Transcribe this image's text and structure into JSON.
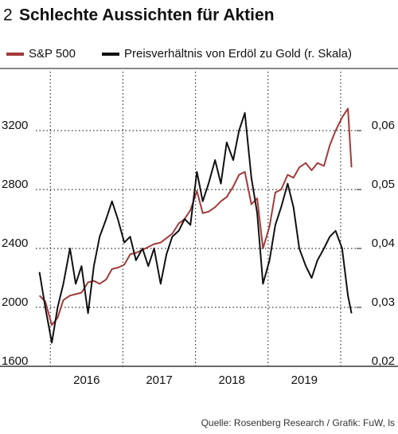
{
  "chart_data": {
    "type": "line",
    "number": "2",
    "title": "Schlechte Aussichten für Aktien",
    "source": "Quelle: Rosenberg Research / Grafik: FuW, ls",
    "x": [
      2015.85,
      2015.93,
      2016.02,
      2016.1,
      2016.18,
      2016.27,
      2016.35,
      2016.43,
      2016.52,
      2016.6,
      2016.68,
      2016.77,
      2016.85,
      2016.93,
      2017.02,
      2017.1,
      2017.18,
      2017.27,
      2017.35,
      2017.43,
      2017.52,
      2017.6,
      2017.68,
      2017.77,
      2017.85,
      2017.93,
      2018.02,
      2018.1,
      2018.18,
      2018.27,
      2018.35,
      2018.43,
      2018.52,
      2018.6,
      2018.68,
      2018.77,
      2018.85,
      2018.93,
      2019.02,
      2019.1,
      2019.18,
      2019.27,
      2019.35,
      2019.43,
      2019.52,
      2019.6,
      2019.68,
      2019.77,
      2019.85,
      2019.93,
      2020.02,
      2020.1,
      2020.15
    ],
    "series": [
      {
        "name": "S&P 500",
        "color": "#a33a3a",
        "values": [
          2080,
          2040,
          1880,
          1930,
          2050,
          2080,
          2090,
          2100,
          2170,
          2180,
          2160,
          2190,
          2260,
          2270,
          2290,
          2360,
          2370,
          2390,
          2410,
          2430,
          2440,
          2470,
          2500,
          2570,
          2600,
          2660,
          2790,
          2640,
          2650,
          2680,
          2720,
          2750,
          2820,
          2900,
          2920,
          2700,
          2740,
          2400,
          2550,
          2780,
          2800,
          2900,
          2880,
          2950,
          2980,
          2930,
          2980,
          2960,
          3100,
          3200,
          3290,
          3350,
          2950
        ]
      },
      {
        "name": "Preisverhältnis von Erdöl zu Gold (r. Skala)",
        "color": "#111111",
        "axis": "y2",
        "values": [
          0.036,
          0.03,
          0.024,
          0.03,
          0.034,
          0.04,
          0.034,
          0.037,
          0.029,
          0.037,
          0.042,
          0.045,
          0.048,
          0.045,
          0.041,
          0.042,
          0.038,
          0.04,
          0.037,
          0.04,
          0.034,
          0.039,
          0.042,
          0.043,
          0.045,
          0.044,
          0.053,
          0.048,
          0.051,
          0.055,
          0.051,
          0.058,
          0.055,
          0.06,
          0.063,
          0.052,
          0.046,
          0.034,
          0.038,
          0.044,
          0.047,
          0.051,
          0.047,
          0.04,
          0.037,
          0.035,
          0.038,
          0.04,
          0.042,
          0.043,
          0.04,
          0.032,
          0.029
        ]
      }
    ],
    "xlim": [
      2015.8,
      2020.22
    ],
    "xticks": [
      {
        "value": 2016.5,
        "label": "2016"
      },
      {
        "value": 2017.5,
        "label": "2017"
      },
      {
        "value": 2018.5,
        "label": "2018"
      },
      {
        "value": 2019.5,
        "label": "2019"
      }
    ],
    "xgrid": [
      2016,
      2017,
      2018,
      2019,
      2020
    ],
    "ylim": [
      1600,
      3600
    ],
    "yticks": [
      1600,
      2000,
      2400,
      2800,
      3200
    ],
    "y2lim": [
      0.02,
      0.07
    ],
    "y2ticks": [
      {
        "value": 0.02,
        "label": "0,02"
      },
      {
        "value": 0.03,
        "label": "0,03"
      },
      {
        "value": 0.04,
        "label": "0,04"
      },
      {
        "value": 0.05,
        "label": "0,05"
      },
      {
        "value": 0.06,
        "label": "0,06"
      }
    ],
    "grid": true
  }
}
